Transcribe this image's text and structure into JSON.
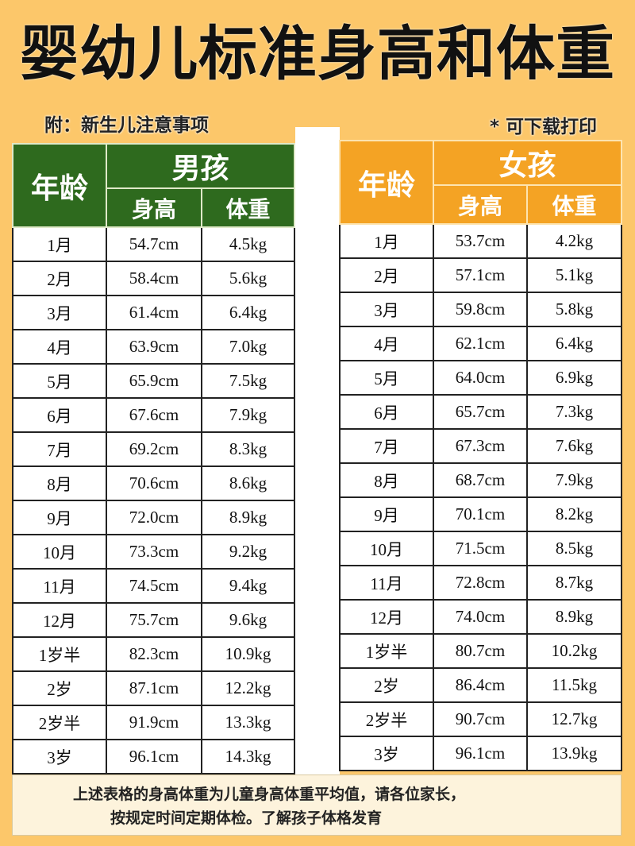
{
  "title": "婴幼儿标准身高和体重",
  "note": "附：新生儿注意事项",
  "print_note": "* 可下载打印",
  "colors": {
    "background": "#fcc76a",
    "boys_header": "#2e6a1e",
    "girls_header": "#f4a324"
  },
  "headers": {
    "age": "年龄",
    "boys": "男孩",
    "girls": "女孩",
    "height": "身高",
    "weight": "体重"
  },
  "boys": [
    [
      "1月",
      "54.7cm",
      "4.5kg"
    ],
    [
      "2月",
      "58.4cm",
      "5.6kg"
    ],
    [
      "3月",
      "61.4cm",
      "6.4kg"
    ],
    [
      "4月",
      "63.9cm",
      "7.0kg"
    ],
    [
      "5月",
      "65.9cm",
      "7.5kg"
    ],
    [
      "6月",
      "67.6cm",
      "7.9kg"
    ],
    [
      "7月",
      "69.2cm",
      "8.3kg"
    ],
    [
      "8月",
      "70.6cm",
      "8.6kg"
    ],
    [
      "9月",
      "72.0cm",
      "8.9kg"
    ],
    [
      "10月",
      "73.3cm",
      "9.2kg"
    ],
    [
      "11月",
      "74.5cm",
      "9.4kg"
    ],
    [
      "12月",
      "75.7cm",
      "9.6kg"
    ],
    [
      "1岁半",
      "82.3cm",
      "10.9kg"
    ],
    [
      "2岁",
      "87.1cm",
      "12.2kg"
    ],
    [
      "2岁半",
      "91.9cm",
      "13.3kg"
    ],
    [
      "3岁",
      "96.1cm",
      "14.3kg"
    ]
  ],
  "girls": [
    [
      "1月",
      "53.7cm",
      "4.2kg"
    ],
    [
      "2月",
      "57.1cm",
      "5.1kg"
    ],
    [
      "3月",
      "59.8cm",
      "5.8kg"
    ],
    [
      "4月",
      "62.1cm",
      "6.4kg"
    ],
    [
      "5月",
      "64.0cm",
      "6.9kg"
    ],
    [
      "6月",
      "65.7cm",
      "7.3kg"
    ],
    [
      "7月",
      "67.3cm",
      "7.6kg"
    ],
    [
      "8月",
      "68.7cm",
      "7.9kg"
    ],
    [
      "9月",
      "70.1cm",
      "8.2kg"
    ],
    [
      "10月",
      "71.5cm",
      "8.5kg"
    ],
    [
      "11月",
      "72.8cm",
      "8.7kg"
    ],
    [
      "12月",
      "74.0cm",
      "8.9kg"
    ],
    [
      "1岁半",
      "80.7cm",
      "10.2kg"
    ],
    [
      "2岁",
      "86.4cm",
      "11.5kg"
    ],
    [
      "2岁半",
      "90.7cm",
      "12.7kg"
    ],
    [
      "3岁",
      "96.1cm",
      "13.9kg"
    ]
  ],
  "footer": {
    "line1": "上述表格的身高体重为儿童身高体重平均值，请各位家长，",
    "line2": "按规定时间定期体检。了解孩子体格发育"
  }
}
